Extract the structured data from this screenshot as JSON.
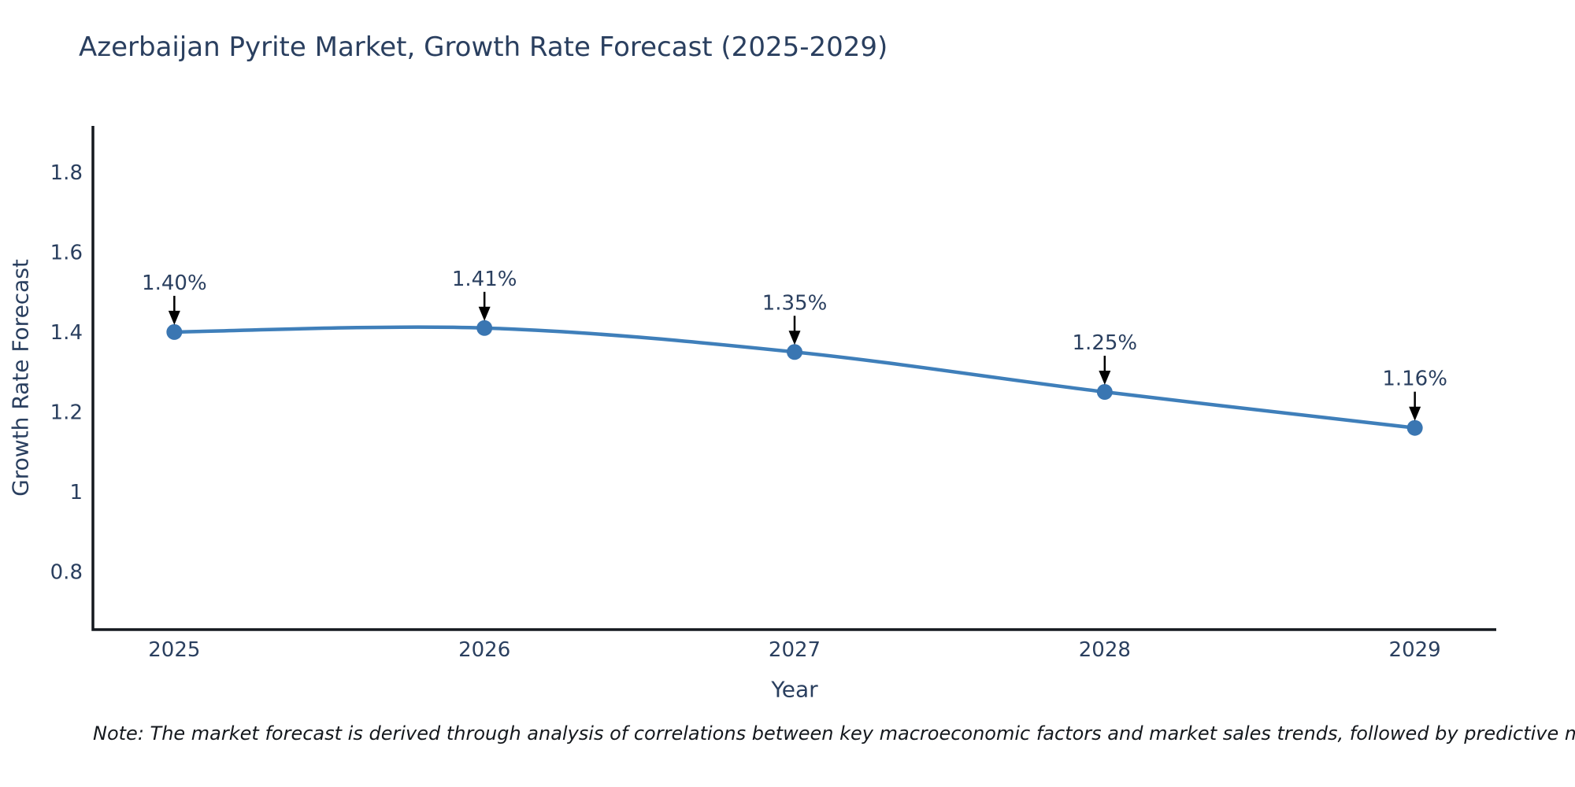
{
  "page": {
    "title": "Azerbaijan Pyrite Market, Growth Rate Forecast (2025-2029)",
    "note": "Note: The market forecast is derived through analysis of correlations between key macroeconomic factors and market sales trends, followed by predictive modeling to project future sales"
  },
  "chart_data": {
    "type": "line",
    "title": "Azerbaijan Pyrite Market, Growth Rate Forecast (2025-2029)",
    "xlabel": "Year",
    "ylabel": "Growth Rate Forecast",
    "categories": [
      "2025",
      "2026",
      "2027",
      "2028",
      "2029"
    ],
    "values": [
      1.4,
      1.41,
      1.35,
      1.25,
      1.16
    ],
    "point_labels": [
      "1.40%",
      "1.41%",
      "1.35%",
      "1.25%",
      "1.16%"
    ],
    "ytick_labels": [
      "0.8",
      "1",
      "1.2",
      "1.4",
      "1.6",
      "1.8"
    ],
    "ytick_values": [
      0.8,
      1.0,
      1.2,
      1.4,
      1.6,
      1.8
    ],
    "ylim": [
      0.655,
      1.916
    ],
    "x_edge_padding_frac": 0.058,
    "grid": false,
    "legend": "none",
    "line_shape": "spline",
    "annotations_style": "down-arrow-to-point",
    "colors": {
      "line": "#3f7fba",
      "marker": "#3a76b2",
      "arrow": "#000000",
      "axis": "#14181f",
      "text": "#2a3f5f",
      "note_text": "#14181d"
    }
  }
}
